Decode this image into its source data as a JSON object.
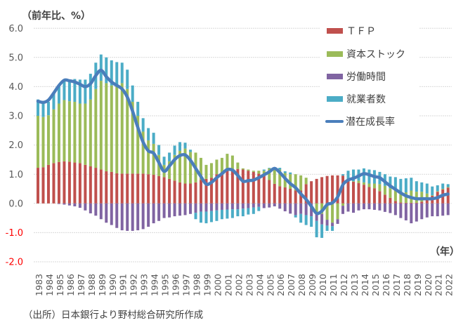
{
  "chart_data": {
    "type": "bar",
    "stacked": true,
    "title": "",
    "ylabel": "（前年比、%）",
    "xlabel": "（年）",
    "ylim": [
      -2.0,
      6.0
    ],
    "yticks": [
      6,
      5,
      4,
      3,
      2,
      1,
      0,
      -1,
      -2
    ],
    "ytick_labels": [
      "6.0",
      "5.0",
      "4.0",
      "3.0",
      "2.0",
      "1.0",
      "0.0",
      "-1.0",
      "-2.0"
    ],
    "tick_color": "#595959",
    "negative_tick_color": "#ff0000",
    "grid": true,
    "legend": "top-right",
    "categories": [
      "1983",
      "",
      "1984",
      "",
      "1985",
      "",
      "1986",
      "",
      "1987",
      "",
      "1988",
      "",
      "1989",
      "",
      "1990",
      "",
      "1991",
      "",
      "1992",
      "",
      "1993",
      "",
      "1994",
      "",
      "1995",
      "",
      "1996",
      "",
      "1997",
      "",
      "1998",
      "",
      "1999",
      "",
      "2000",
      "",
      "2001",
      "",
      "2002",
      "",
      "2003",
      "",
      "2004",
      "",
      "2005",
      "",
      "2006",
      "",
      "2007",
      "",
      "2008",
      "",
      "2009",
      "",
      "2010",
      "",
      "2011",
      "",
      "2012",
      "",
      "2013",
      "",
      "2014",
      "",
      "2015",
      "",
      "2016",
      "",
      "2017",
      "",
      "2018",
      "",
      "2019",
      "",
      "2020",
      "",
      "2021",
      "",
      "2022"
    ],
    "series": [
      {
        "key": "tfp",
        "name": "ＴＦＰ",
        "kind": "bar",
        "color": "#c0504d",
        "values": [
          1.22,
          1.24,
          1.32,
          1.38,
          1.42,
          1.44,
          1.43,
          1.4,
          1.38,
          1.32,
          1.27,
          1.22,
          1.16,
          1.1,
          1.08,
          1.03,
          1.02,
          1.02,
          1.02,
          1.02,
          1.02,
          1.0,
          0.98,
          0.94,
          0.9,
          0.84,
          0.78,
          0.72,
          0.68,
          0.68,
          0.72,
          0.8,
          0.84,
          0.88,
          1.0,
          1.04,
          1.16,
          1.16,
          1.18,
          1.16,
          1.12,
          1.08,
          1.02,
          0.94,
          0.8,
          0.67,
          0.59,
          0.55,
          0.5,
          0.44,
          0.44,
          0.66,
          0.76,
          0.84,
          0.9,
          0.94,
          0.96,
          0.96,
          0.95,
          0.78,
          0.74,
          0.7,
          0.64,
          0.56,
          0.52,
          0.42,
          0.3,
          0.19,
          0.08,
          0.03,
          0.02,
          0.02,
          0.02,
          0.06,
          0.12,
          0.26,
          0.4,
          0.48,
          0.54
        ]
      },
      {
        "key": "capital",
        "name": "資本ストック",
        "kind": "bar",
        "color": "#9bbb59",
        "values": [
          1.78,
          1.72,
          1.7,
          1.84,
          2.0,
          2.1,
          2.07,
          2.08,
          2.04,
          2.1,
          2.29,
          2.7,
          3.04,
          3.02,
          2.96,
          2.97,
          3.1,
          2.9,
          2.46,
          1.98,
          1.44,
          1.16,
          1.06,
          0.72,
          0.42,
          0.6,
          0.88,
          1.08,
          1.2,
          1.08,
          1.02,
          0.76,
          0.48,
          0.5,
          0.5,
          0.52,
          0.54,
          0.48,
          0.22,
          0.04,
          0.04,
          0.04,
          0.1,
          0.18,
          0.4,
          0.51,
          0.57,
          0.49,
          0.5,
          0.56,
          0.52,
          0.22,
          0.0,
          -0.3,
          -0.36,
          -0.56,
          -0.66,
          -0.54,
          -0.08,
          0.02,
          0.02,
          0.08,
          0.08,
          0.12,
          0.16,
          0.24,
          0.3,
          0.33,
          0.4,
          0.37,
          0.36,
          0.42,
          0.38,
          0.34,
          0.22,
          0.02,
          0.02,
          0.02,
          0.02
        ]
      },
      {
        "key": "hours",
        "name": "労働時間",
        "kind": "bar",
        "color": "#8064a2",
        "values": [
          0.0,
          0.0,
          0.0,
          0.0,
          -0.02,
          -0.04,
          -0.07,
          -0.1,
          -0.15,
          -0.24,
          -0.34,
          -0.42,
          -0.54,
          -0.66,
          -0.74,
          -0.84,
          -0.92,
          -0.94,
          -0.94,
          -0.92,
          -0.88,
          -0.8,
          -0.68,
          -0.6,
          -0.5,
          -0.48,
          -0.44,
          -0.42,
          -0.4,
          -0.36,
          -0.32,
          -0.28,
          -0.28,
          -0.26,
          -0.24,
          -0.22,
          -0.21,
          -0.2,
          -0.2,
          -0.18,
          -0.16,
          -0.14,
          -0.12,
          -0.16,
          -0.14,
          -0.1,
          -0.18,
          -0.27,
          -0.35,
          -0.4,
          -0.36,
          -0.4,
          -0.44,
          -0.3,
          -0.36,
          -0.2,
          -0.12,
          -0.16,
          -0.28,
          -0.28,
          -0.32,
          -0.24,
          -0.2,
          -0.2,
          -0.22,
          -0.24,
          -0.29,
          -0.33,
          -0.4,
          -0.5,
          -0.58,
          -0.68,
          -0.62,
          -0.54,
          -0.48,
          -0.44,
          -0.44,
          -0.42,
          -0.4
        ]
      },
      {
        "key": "employees",
        "name": "就業者数",
        "kind": "bar",
        "color": "#4bacc6",
        "values": [
          0.56,
          0.48,
          0.46,
          0.56,
          0.58,
          0.7,
          0.74,
          0.78,
          0.82,
          0.82,
          0.88,
          0.9,
          0.9,
          0.88,
          0.86,
          0.84,
          0.7,
          0.66,
          0.56,
          0.48,
          0.46,
          0.42,
          0.38,
          0.34,
          0.28,
          0.3,
          0.32,
          0.3,
          0.2,
          0.08,
          -0.22,
          -0.38,
          -0.4,
          -0.38,
          -0.36,
          -0.32,
          -0.31,
          -0.3,
          -0.24,
          -0.26,
          -0.22,
          -0.22,
          -0.14,
          0.04,
          0.02,
          0.06,
          0.06,
          0.06,
          0.06,
          -0.08,
          -0.3,
          -0.34,
          -0.36,
          -0.56,
          -0.46,
          -0.18,
          -0.16,
          0.0,
          0.05,
          0.32,
          0.4,
          0.38,
          0.48,
          0.48,
          0.46,
          0.42,
          0.4,
          0.4,
          0.42,
          0.44,
          0.48,
          0.44,
          0.36,
          0.32,
          0.34,
          0.3,
          0.2,
          0.18,
          0.1
        ]
      },
      {
        "key": "potential",
        "name": "潜在成長率",
        "kind": "line",
        "color": "#4a7ebb",
        "values": [
          3.5,
          3.46,
          3.54,
          3.78,
          4.04,
          4.22,
          4.2,
          4.16,
          4.08,
          4.0,
          4.1,
          4.38,
          4.56,
          4.34,
          4.16,
          4.04,
          3.92,
          3.64,
          3.16,
          2.6,
          2.1,
          1.8,
          1.72,
          1.4,
          1.1,
          1.28,
          1.5,
          1.64,
          1.66,
          1.48,
          1.2,
          0.92,
          0.66,
          0.72,
          0.88,
          1.02,
          1.16,
          1.14,
          0.96,
          0.76,
          0.78,
          0.8,
          0.88,
          0.98,
          1.08,
          1.2,
          1.06,
          0.86,
          0.68,
          0.54,
          0.33,
          0.14,
          -0.1,
          -0.34,
          -0.26,
          -0.04,
          0.02,
          0.22,
          0.64,
          0.8,
          0.86,
          0.94,
          1.02,
          0.98,
          0.92,
          0.88,
          0.74,
          0.6,
          0.48,
          0.36,
          0.26,
          0.2,
          0.16,
          0.16,
          0.16,
          0.16,
          0.2,
          0.28,
          0.32
        ]
      }
    ]
  },
  "source_note": "（出所）日本銀行より野村総合研究所作成"
}
